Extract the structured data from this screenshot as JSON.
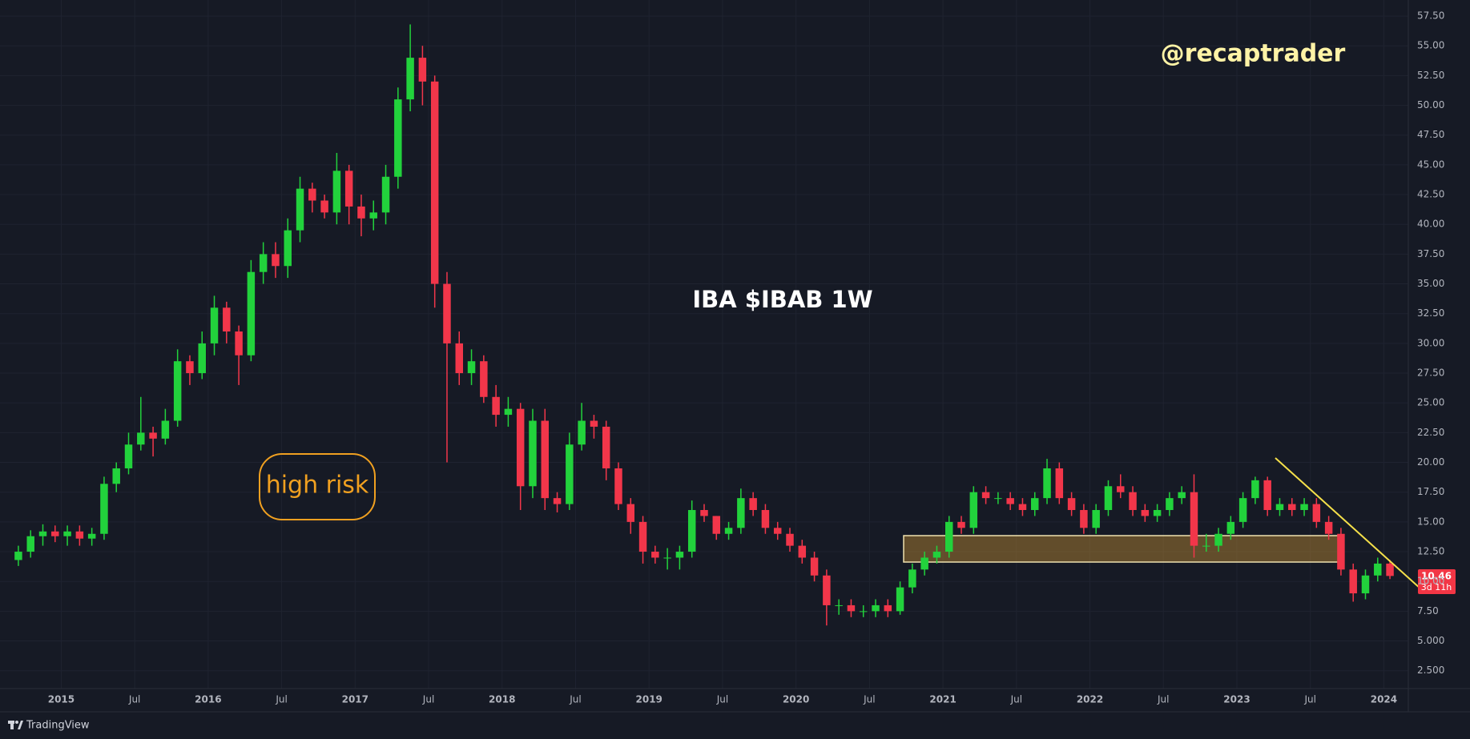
{
  "chart_data": {
    "type": "candlestick",
    "title": "IBA $IBAB 1W",
    "watermark": "@recaptrader",
    "note": "high risk",
    "countdown": "3d 11h",
    "branding": "TradingView",
    "up_color": "#22d23c",
    "down_color": "#f2364a",
    "grid": true,
    "x": [
      "2014-09",
      "2014-10",
      "2014-11",
      "2014-12",
      "2015-01",
      "2015-02",
      "2015-03",
      "2015-04",
      "2015-05",
      "2015-06",
      "2015-07",
      "2015-08",
      "2015-09",
      "2015-10",
      "2015-11",
      "2015-12",
      "2016-01",
      "2016-02",
      "2016-03",
      "2016-04",
      "2016-05",
      "2016-06",
      "2016-07",
      "2016-08",
      "2016-09",
      "2016-10",
      "2016-11",
      "2016-12",
      "2017-01",
      "2017-02",
      "2017-03",
      "2017-04",
      "2017-05",
      "2017-06",
      "2017-07",
      "2017-08",
      "2017-09",
      "2017-10",
      "2017-11",
      "2017-12",
      "2018-01",
      "2018-02",
      "2018-03",
      "2018-04",
      "2018-05",
      "2018-06",
      "2018-07",
      "2018-08",
      "2018-09",
      "2018-10",
      "2018-11",
      "2018-12",
      "2019-01",
      "2019-02",
      "2019-03",
      "2019-04",
      "2019-05",
      "2019-06",
      "2019-07",
      "2019-08",
      "2019-09",
      "2019-10",
      "2019-11",
      "2019-12",
      "2020-01",
      "2020-02",
      "2020-03",
      "2020-04",
      "2020-05",
      "2020-06",
      "2020-07",
      "2020-08",
      "2020-09",
      "2020-10",
      "2020-11",
      "2020-12",
      "2021-01",
      "2021-02",
      "2021-03",
      "2021-04",
      "2021-05",
      "2021-06",
      "2021-07",
      "2021-08",
      "2021-09",
      "2021-10",
      "2021-11",
      "2021-12",
      "2022-01",
      "2022-02",
      "2022-03",
      "2022-04",
      "2022-05",
      "2022-06",
      "2022-07",
      "2022-08",
      "2022-09",
      "2022-10",
      "2022-11",
      "2022-12",
      "2023-01",
      "2023-02",
      "2023-03",
      "2023-04",
      "2023-05",
      "2023-06",
      "2023-07",
      "2023-08",
      "2023-09",
      "2023-10",
      "2023-11",
      "2023-12",
      "2024-01"
    ],
    "open": [
      11.8,
      12.5,
      13.8,
      14.2,
      13.8,
      14.2,
      13.6,
      14.0,
      18.2,
      19.5,
      21.5,
      22.5,
      22.0,
      23.5,
      28.5,
      27.5,
      30.0,
      33.0,
      31.0,
      29.0,
      36.0,
      37.5,
      36.5,
      39.5,
      43.0,
      42.0,
      41.0,
      44.5,
      41.5,
      40.5,
      41.0,
      44.0,
      50.5,
      54.0,
      52.0,
      35.0,
      30.0,
      27.5,
      28.5,
      25.5,
      24.0,
      24.5,
      18.0,
      23.5,
      17.0,
      16.5,
      21.5,
      23.5,
      23.0,
      19.5,
      16.5,
      15.0,
      12.5,
      12.0,
      12.0,
      12.5,
      16.0,
      15.5,
      14.0,
      14.5,
      17.0,
      16.0,
      14.5,
      14.0,
      13.0,
      12.0,
      10.5,
      8.0,
      8.0,
      7.5,
      7.5,
      8.0,
      7.5,
      9.5,
      11.0,
      12.0,
      12.5,
      15.0,
      14.5,
      17.5,
      17.0,
      17.0,
      16.5,
      16.0,
      17.0,
      19.5,
      17.0,
      16.0,
      14.5,
      16.0,
      18.0,
      17.5,
      16.0,
      15.5,
      16.0,
      17.0,
      17.5,
      13.0,
      13.0,
      14.0,
      15.0,
      17.0,
      18.5,
      16.0,
      16.5,
      16.0,
      16.5,
      15.0,
      14.0,
      11.0,
      9.0,
      10.5,
      11.5
    ],
    "high": [
      13.0,
      14.3,
      14.8,
      14.7,
      14.7,
      14.7,
      14.5,
      18.8,
      20.0,
      22.5,
      25.5,
      23.0,
      24.5,
      29.5,
      29.0,
      31.0,
      34.0,
      33.5,
      31.5,
      37.0,
      38.5,
      38.5,
      40.5,
      44.0,
      43.5,
      42.5,
      46.0,
      45.0,
      42.5,
      42.0,
      45.0,
      51.5,
      56.8,
      55.0,
      52.5,
      36.0,
      31.0,
      29.5,
      29.0,
      26.5,
      25.5,
      25.0,
      24.5,
      24.5,
      17.5,
      22.5,
      25.0,
      24.0,
      23.5,
      20.0,
      17.0,
      15.5,
      13.0,
      12.8,
      13.0,
      16.8,
      16.5,
      15.5,
      15.0,
      17.8,
      17.5,
      16.5,
      15.0,
      14.5,
      13.5,
      12.5,
      11.0,
      8.5,
      8.5,
      8.0,
      8.5,
      8.5,
      10.0,
      11.5,
      12.5,
      13.0,
      15.5,
      15.5,
      18.0,
      18.0,
      17.5,
      17.5,
      17.0,
      17.5,
      20.3,
      20.0,
      17.5,
      16.5,
      16.5,
      18.5,
      19.0,
      18.0,
      16.5,
      16.5,
      17.5,
      18.0,
      19.0,
      14.0,
      14.5,
      15.5,
      17.5,
      18.8,
      18.8,
      17.0,
      17.0,
      17.0,
      17.0,
      15.5,
      14.5,
      11.5,
      11.0,
      12.0,
      11.8
    ],
    "low": [
      11.3,
      12.0,
      13.0,
      13.3,
      13.0,
      13.0,
      13.0,
      13.5,
      17.5,
      19.0,
      21.0,
      20.5,
      21.5,
      23.0,
      26.5,
      27.0,
      29.0,
      30.0,
      26.5,
      28.5,
      35.0,
      35.5,
      35.5,
      38.5,
      41.0,
      40.5,
      40.0,
      40.0,
      39.0,
      39.5,
      40.0,
      43.0,
      49.5,
      50.0,
      33.0,
      20.0,
      26.5,
      26.5,
      25.0,
      23.0,
      23.0,
      16.0,
      17.0,
      16.0,
      15.8,
      16.0,
      21.0,
      22.0,
      18.5,
      16.0,
      14.0,
      11.5,
      11.5,
      11.0,
      11.0,
      12.0,
      15.0,
      13.5,
      13.5,
      14.0,
      15.5,
      14.0,
      13.5,
      12.5,
      11.5,
      10.0,
      6.3,
      7.2,
      7.0,
      7.0,
      7.0,
      7.0,
      7.2,
      9.0,
      10.5,
      11.5,
      12.0,
      14.0,
      14.0,
      16.5,
      16.5,
      16.0,
      15.5,
      15.5,
      16.5,
      16.5,
      15.5,
      14.0,
      14.0,
      15.5,
      17.0,
      15.5,
      15.0,
      15.0,
      15.5,
      16.5,
      12.0,
      12.5,
      12.5,
      13.5,
      14.5,
      16.5,
      15.5,
      15.5,
      15.5,
      15.5,
      14.5,
      13.5,
      10.5,
      8.3,
      8.5,
      10.0,
      10.2
    ],
    "close": [
      12.5,
      13.8,
      14.2,
      13.8,
      14.2,
      13.6,
      14.0,
      18.2,
      19.5,
      21.5,
      22.5,
      22.0,
      23.5,
      28.5,
      27.5,
      30.0,
      33.0,
      31.0,
      29.0,
      36.0,
      37.5,
      36.5,
      39.5,
      43.0,
      42.0,
      41.0,
      44.5,
      41.5,
      40.5,
      41.0,
      44.0,
      50.5,
      54.0,
      52.0,
      35.0,
      30.0,
      27.5,
      28.5,
      25.5,
      24.0,
      24.5,
      18.0,
      23.5,
      17.0,
      16.5,
      21.5,
      23.5,
      23.0,
      19.5,
      16.5,
      15.0,
      12.5,
      12.0,
      12.0,
      12.5,
      16.0,
      15.5,
      14.0,
      14.5,
      17.0,
      16.0,
      14.5,
      14.0,
      13.0,
      12.0,
      10.5,
      8.0,
      8.0,
      7.5,
      7.5,
      8.0,
      7.5,
      9.5,
      11.0,
      12.0,
      12.5,
      15.0,
      14.5,
      17.5,
      17.0,
      17.0,
      16.5,
      16.0,
      17.0,
      19.5,
      17.0,
      16.0,
      14.5,
      16.0,
      18.0,
      17.5,
      16.0,
      15.5,
      16.0,
      17.0,
      17.5,
      13.0,
      13.0,
      14.0,
      15.0,
      17.0,
      18.5,
      16.0,
      16.5,
      16.0,
      16.5,
      15.0,
      14.0,
      11.0,
      9.0,
      10.5,
      11.5,
      10.46
    ],
    "xlim": [
      "2014-08",
      "2024-03"
    ],
    "xticks": [
      {
        "value": "2015-01",
        "label": "2015"
      },
      {
        "value": "2015-07",
        "label": "Jul"
      },
      {
        "value": "2016-01",
        "label": "2016"
      },
      {
        "value": "2016-07",
        "label": "Jul"
      },
      {
        "value": "2017-01",
        "label": "2017"
      },
      {
        "value": "2017-07",
        "label": "Jul"
      },
      {
        "value": "2018-01",
        "label": "2018"
      },
      {
        "value": "2018-07",
        "label": "Jul"
      },
      {
        "value": "2019-01",
        "label": "2019"
      },
      {
        "value": "2019-07",
        "label": "Jul"
      },
      {
        "value": "2020-01",
        "label": "2020"
      },
      {
        "value": "2020-07",
        "label": "Jul"
      },
      {
        "value": "2021-01",
        "label": "2021"
      },
      {
        "value": "2021-07",
        "label": "Jul"
      },
      {
        "value": "2022-01",
        "label": "2022"
      },
      {
        "value": "2022-07",
        "label": "Jul"
      },
      {
        "value": "2023-01",
        "label": "2023"
      },
      {
        "value": "2023-07",
        "label": "Jul"
      },
      {
        "value": "2024-01",
        "label": "2024"
      }
    ],
    "ylim": [
      1.0,
      58.85
    ],
    "yticks": [
      {
        "value": 57.5,
        "label": "57.50"
      },
      {
        "value": 55,
        "label": "55.00"
      },
      {
        "value": 52.5,
        "label": "52.50"
      },
      {
        "value": 50,
        "label": "50.00"
      },
      {
        "value": 47.5,
        "label": "47.50"
      },
      {
        "value": 45,
        "label": "45.00"
      },
      {
        "value": 42.5,
        "label": "42.50"
      },
      {
        "value": 40,
        "label": "40.00"
      },
      {
        "value": 37.5,
        "label": "37.50"
      },
      {
        "value": 35,
        "label": "35.00"
      },
      {
        "value": 32.5,
        "label": "32.50"
      },
      {
        "value": 30,
        "label": "30.00"
      },
      {
        "value": 27.5,
        "label": "27.50"
      },
      {
        "value": 25,
        "label": "25.00"
      },
      {
        "value": 22.5,
        "label": "22.50"
      },
      {
        "value": 20,
        "label": "20.00"
      },
      {
        "value": 17.5,
        "label": "17.50"
      },
      {
        "value": 15,
        "label": "15.00"
      },
      {
        "value": 12.5,
        "label": "12.50"
      },
      {
        "value": 10,
        "label": "10.00"
      },
      {
        "value": 7.5,
        "label": "7.50"
      },
      {
        "value": 5,
        "label": "5.000"
      },
      {
        "value": 2.5,
        "label": "2.500"
      }
    ]
  }
}
